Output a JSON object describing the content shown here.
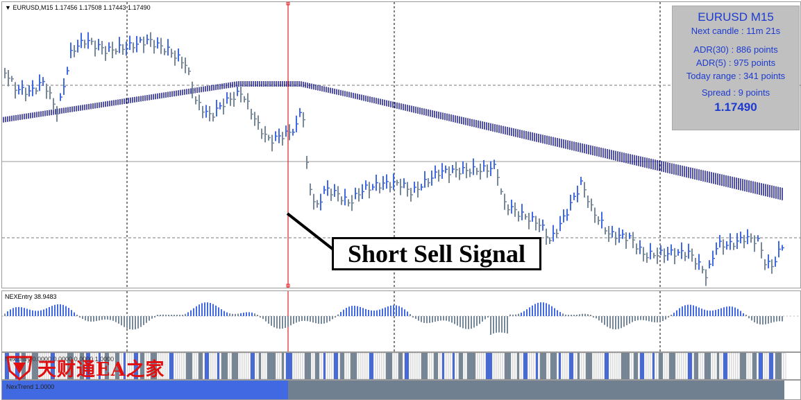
{
  "chart": {
    "header": "EURUSD,M15  1.17456 1.17508 1.17443 1.17490",
    "symbol": "EURUSD",
    "timeframe": "M15",
    "ohlc": [
      "1.17456",
      "1.17508",
      "1.17443",
      "1.17490"
    ]
  },
  "info_box": {
    "title": "EURUSD M15",
    "next_candle": "Next candle : 11m 21s",
    "adr30": "ADR(30) : 886 points",
    "adr5": "ADR(5) : 975 points",
    "today_range": "Today range : 341 points",
    "spread": "Spread : 9 points",
    "price": "1.17490"
  },
  "signal_callout": "Short Sell Signal",
  "indicators": {
    "nex_entry": "NEXEntry 38.9483",
    "nex_entry_bars": "NexEntry 0.0000 0.0000 0.0000 1.0000",
    "nex_trend": "NexTrend  1.0000"
  },
  "watermark": {
    "text": "天财通EA之家"
  },
  "colors": {
    "bull": "#4169e1",
    "bear": "#778899",
    "ma": "#000080",
    "signal_line": "#e02020",
    "trend_bull": "#4169e1",
    "trend_bear": "#708090",
    "watermark": "#e01010"
  }
}
